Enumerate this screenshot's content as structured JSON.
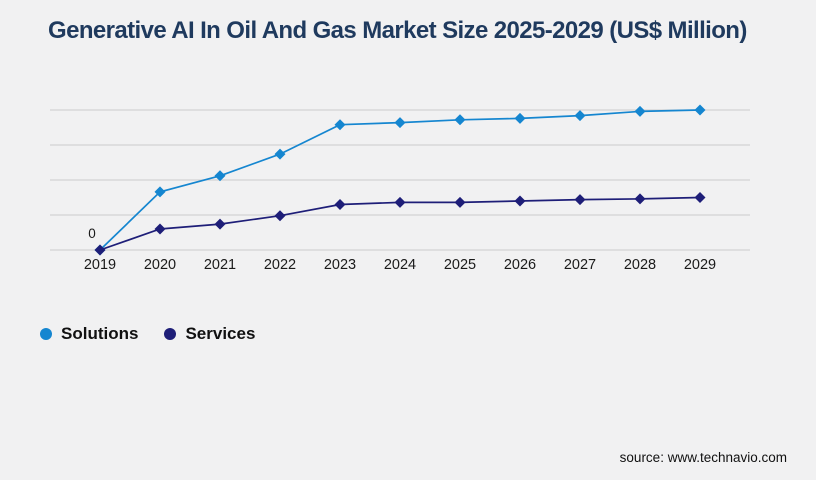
{
  "page": {
    "title": "Generative AI In Oil And Gas Market Size 2025-2029 (US$ Million)",
    "source": "source: www.technavio.com"
  },
  "colors": {
    "background": "#f1f1f2",
    "title_text": "#1f3a5e",
    "gridline": "#d2d2d4",
    "axis_tick_text": "#1a1a1a",
    "solutions_series": "#1586d0",
    "services_series": "#1e1e78"
  },
  "chart_data": {
    "type": "line",
    "title": "Generative AI In Oil And Gas Market Size 2025-2029 (US$ Million)",
    "categories": [
      "2019",
      "2020",
      "2021",
      "2022",
      "2023",
      "2024",
      "2025",
      "2026",
      "2027",
      "2028",
      "2029"
    ],
    "series": [
      {
        "name": "Solutions",
        "color": "#1586d0",
        "values": [
          0,
          41.5,
          53,
          68.5,
          89.5,
          91,
          93,
          94,
          96,
          99,
          100
        ]
      },
      {
        "name": "Services",
        "color": "#1e1e78",
        "values": [
          0,
          15,
          18.5,
          24.5,
          32.5,
          34,
          34,
          35,
          36,
          36.5,
          37.5
        ]
      }
    ],
    "data_labels": [
      {
        "x": "2019",
        "text": "0"
      }
    ],
    "xlabel": "",
    "ylabel": "",
    "ylim": [
      0,
      100
    ],
    "y_axis_tick_labels_visible": false,
    "gridline_count": 5,
    "grid": "horizontal-only",
    "marker": "diamond",
    "legend_position": "bottom-left"
  }
}
